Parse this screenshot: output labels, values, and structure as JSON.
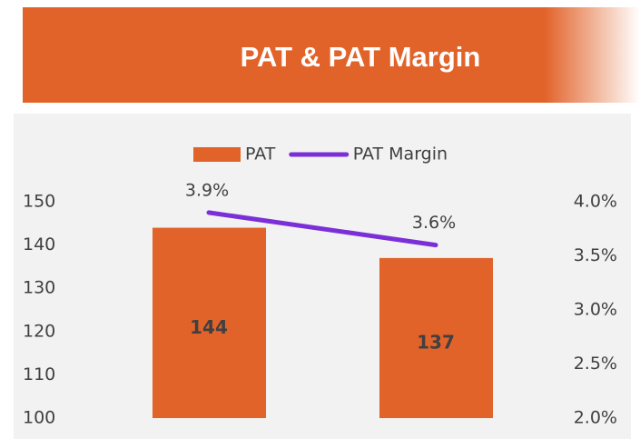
{
  "header": {
    "title": "PAT & PAT Margin"
  },
  "chart_data": {
    "type": "bar",
    "categories": [
      null,
      null
    ],
    "series": [
      {
        "name": "PAT",
        "type": "bar",
        "color": "#e2632a",
        "values": [
          144,
          137
        ]
      },
      {
        "name": "PAT Margin",
        "type": "line",
        "axis": "y2",
        "color": "#7b2fd8",
        "values": [
          3.9,
          3.6
        ],
        "value_labels": [
          "3.9%",
          "3.6%"
        ]
      }
    ],
    "ylim": [
      100,
      150
    ],
    "yticks": [
      100,
      110,
      120,
      130,
      140,
      150
    ],
    "y2lim": [
      2,
      4
    ],
    "y2ticks": [
      {
        "value": 2,
        "label": "2.0%"
      },
      {
        "value": 2.5,
        "label": "2.5%"
      },
      {
        "value": 3,
        "label": "3.0%"
      },
      {
        "value": 3.5,
        "label": "3.5%"
      },
      {
        "value": 4,
        "label": "4.0%"
      }
    ],
    "legend": "top"
  }
}
